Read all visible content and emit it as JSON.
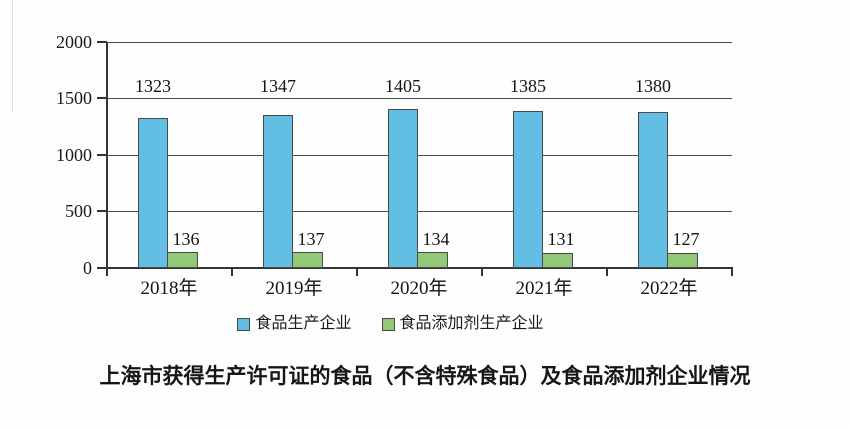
{
  "chart_data": {
    "type": "bar",
    "categories": [
      "2018年",
      "2019年",
      "2020年",
      "2021年",
      "2022年"
    ],
    "series": [
      {
        "name": "食品生产企业",
        "color": "#63BEE3",
        "values": [
          1323,
          1347,
          1405,
          1385,
          1380
        ]
      },
      {
        "name": "食品添加剂生产企业",
        "color": "#92C878",
        "values": [
          136,
          137,
          134,
          131,
          127
        ]
      }
    ],
    "title": "上海市获得生产许可证的食品（不含特殊食品）及食品添加剂企业情况",
    "xlabel": "",
    "ylabel": "",
    "ylim": [
      0,
      2000
    ],
    "yticks": [
      0,
      500,
      1000,
      1500,
      2000
    ],
    "grid": true,
    "legend_position": "bottom-center",
    "line_color": "#3a3a3a",
    "background": "#fefefe"
  }
}
